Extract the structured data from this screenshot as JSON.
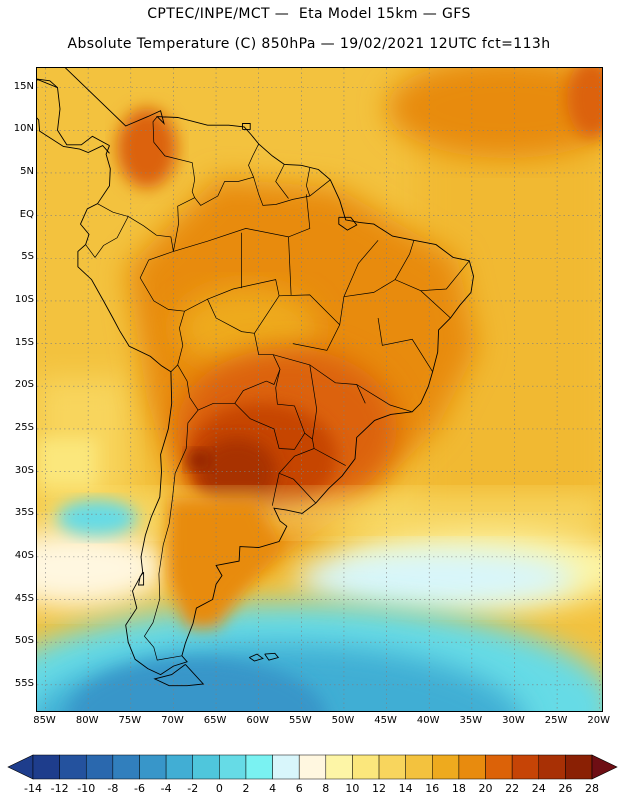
{
  "title": {
    "line1": "CPTEC/INPE/MCT —  Eta Model 15km — GFS",
    "line2": "Absolute Temperature (C) 850hPa — 19/02/2021 12UTC fct=113h"
  },
  "map": {
    "lat_labels": [
      {
        "label": "15N",
        "lat": 15
      },
      {
        "label": "10N",
        "lat": 10
      },
      {
        "label": "5N",
        "lat": 5
      },
      {
        "label": "EQ",
        "lat": 0
      },
      {
        "label": "5S",
        "lat": -5
      },
      {
        "label": "10S",
        "lat": -10
      },
      {
        "label": "15S",
        "lat": -15
      },
      {
        "label": "20S",
        "lat": -20
      },
      {
        "label": "25S",
        "lat": -25
      },
      {
        "label": "30S",
        "lat": -30
      },
      {
        "label": "35S",
        "lat": -35
      },
      {
        "label": "40S",
        "lat": -40
      },
      {
        "label": "45S",
        "lat": -45
      },
      {
        "label": "50S",
        "lat": -50
      },
      {
        "label": "55S",
        "lat": -55
      }
    ],
    "lon_labels": [
      {
        "label": "85W",
        "lon": -85
      },
      {
        "label": "80W",
        "lon": -80
      },
      {
        "label": "75W",
        "lon": -75
      },
      {
        "label": "70W",
        "lon": -70
      },
      {
        "label": "65W",
        "lon": -65
      },
      {
        "label": "60W",
        "lon": -60
      },
      {
        "label": "55W",
        "lon": -55
      },
      {
        "label": "50W",
        "lon": -50
      },
      {
        "label": "45W",
        "lon": -45
      },
      {
        "label": "40W",
        "lon": -40
      },
      {
        "label": "35W",
        "lon": -35
      },
      {
        "label": "30W",
        "lon": -30
      },
      {
        "label": "25W",
        "lon": -25
      },
      {
        "label": "20W",
        "lon": -20
      }
    ],
    "lon_range": [
      -86,
      -19.5
    ],
    "lat_range": [
      -58.3,
      17.3
    ]
  },
  "colorbar": {
    "labels": [
      "-14",
      "-12",
      "-10",
      "-8",
      "-6",
      "-4",
      "-2",
      "0",
      "2",
      "4",
      "6",
      "8",
      "10",
      "12",
      "14",
      "16",
      "18",
      "20",
      "22",
      "24",
      "26",
      "28"
    ],
    "colors": [
      "#1e3d8c",
      "#24529e",
      "#2a68ae",
      "#317fbd",
      "#3896c9",
      "#41aed4",
      "#4fc6dc",
      "#66dbe6",
      "#7af2f2",
      "#d8f6fb",
      "#fff7e0",
      "#fdf5a6",
      "#fbe77c",
      "#f8d55d",
      "#f3c23e",
      "#eeaa1e",
      "#e88b0e",
      "#dc6208",
      "#c64406",
      "#a83005",
      "#8a2004"
    ]
  },
  "colors": {
    "grid": "#7f7f7f",
    "coast": "#000000",
    "sea_warm": "#f3c23e",
    "sea_cold": "#41aed4"
  }
}
